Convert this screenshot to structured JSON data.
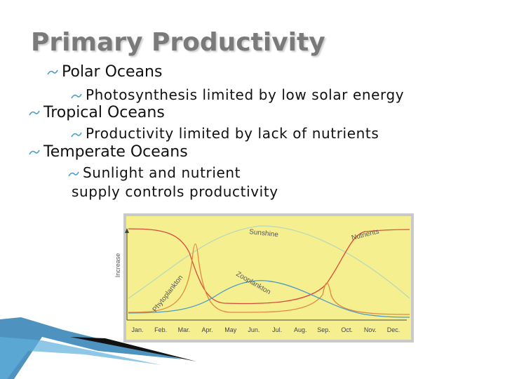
{
  "header": {
    "title": "Primary Productivity"
  },
  "bullets": [
    {
      "text": "Polar Oceans",
      "sub": [
        "Photosynthesis limited by low solar energy"
      ]
    },
    {
      "text": "Tropical Oceans",
      "sub": [
        "Productivity limited by lack of nutrients"
      ]
    },
    {
      "text": "Temperate Oceans",
      "sub": [
        "Sunlight and nutrient supply controls productivity"
      ]
    }
  ],
  "figure": {
    "y_label": "Increase",
    "curve_labels": {
      "sunshine": "Sunshine",
      "nutrients": "Nutrients",
      "zooplankton": "Zooplankton",
      "phytoplankton": "Phytoplankton"
    },
    "months": [
      "Jan.",
      "Feb.",
      "Mar.",
      "Apr.",
      "May",
      "Jun.",
      "Jul.",
      "Aug.",
      "Sep.",
      "Oct.",
      "Nov.",
      "Dec."
    ]
  }
}
